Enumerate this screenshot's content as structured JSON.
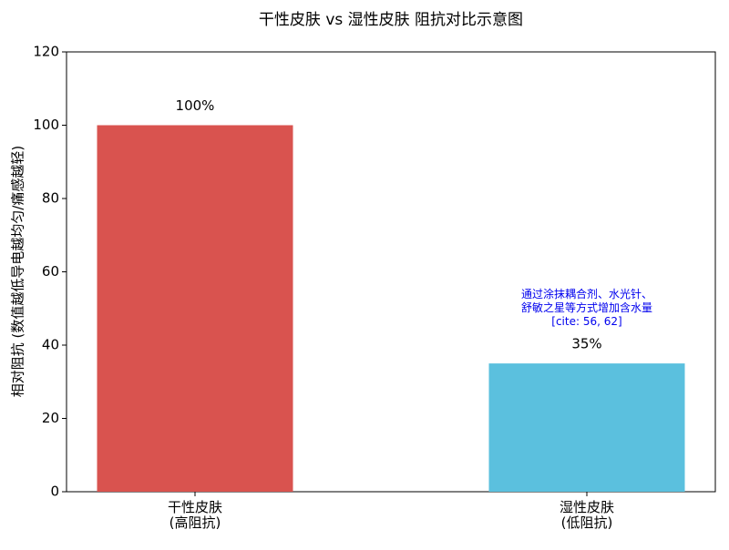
{
  "chart_data": {
    "type": "bar",
    "title": "干性皮肤 vs 湿性皮肤 阻抗对比示意图",
    "ylabel": "相对阻抗 (数值越低导电越均匀/痛感越轻)",
    "categories": [
      "干性皮肤\n(高阻抗)",
      "湿性皮肤\n(低阻抗)"
    ],
    "values": [
      100,
      35
    ],
    "value_labels": [
      "100%",
      "35%"
    ],
    "colors": [
      "#d9534f",
      "#5bc0de"
    ],
    "annotation": "通过涂抹耦合剂、水光针、\n舒敏之星等方式增加含水量\n[cite: 56, 62]",
    "annotation_color": "#0000ee",
    "ylim": [
      0,
      120
    ],
    "yticks": [
      0,
      20,
      40,
      60,
      80,
      100,
      120
    ],
    "grid": false
  }
}
